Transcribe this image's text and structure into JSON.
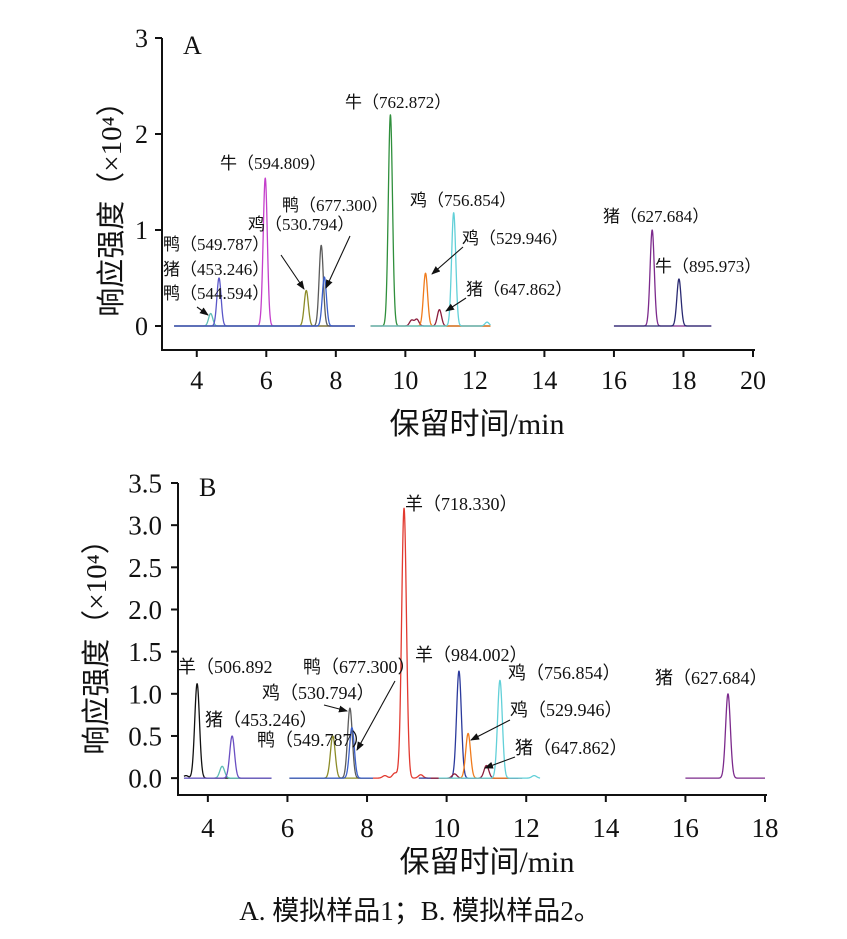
{
  "caption": "A. 模拟样品1；B. 模拟样品2。",
  "chart_data": [
    {
      "type": "line",
      "panel_label": "A",
      "xlabel": "保留时间/min",
      "ylabel": "响应强度（×10⁴）",
      "xlim": [
        3,
        20
      ],
      "ylim": [
        -0.25,
        3
      ],
      "xticks": [
        "4",
        "6",
        "8",
        "10",
        "12",
        "14",
        "16",
        "18",
        "20"
      ],
      "yticks": [
        "0",
        "1",
        "2",
        "3"
      ],
      "grid": false,
      "series": [
        {
          "color": "#5dbdb5",
          "x_range": [
            3.35,
            8.55
          ],
          "peaks": [
            [
              4.4,
              0.13
            ]
          ]
        },
        {
          "color": "#5a57c8",
          "x_range": [
            3.35,
            8.55
          ],
          "peaks": [
            [
              4.64,
              0.5
            ]
          ]
        },
        {
          "color": "#c43fcb",
          "x_range": [
            3.35,
            8.55
          ],
          "peaks": [
            [
              5.97,
              1.54
            ]
          ]
        },
        {
          "color": "#8c8c28",
          "x_range": [
            3.35,
            8.55
          ],
          "peaks": [
            [
              7.15,
              0.37
            ]
          ]
        },
        {
          "color": "#5b5b5b",
          "x_range": [
            3.35,
            8.55
          ],
          "peaks": [
            [
              7.58,
              0.84
            ]
          ]
        },
        {
          "color": "#3b5fc9",
          "x_range": [
            3.35,
            8.55
          ],
          "peaks": [
            [
              7.67,
              0.51
            ]
          ]
        },
        {
          "color": "#2f8f3c",
          "x_range": [
            9.0,
            12.45
          ],
          "peaks": [
            [
              9.57,
              2.2
            ]
          ]
        },
        {
          "color": "#8a1c3c",
          "x_range": [
            9.0,
            12.45
          ],
          "peaks": [
            [
              10.18,
              0.06
            ],
            [
              10.33,
              0.07
            ],
            [
              10.98,
              0.17
            ]
          ]
        },
        {
          "color": "#f07b1c",
          "x_range": [
            9.0,
            12.45
          ],
          "peaks": [
            [
              10.58,
              0.55
            ]
          ]
        },
        {
          "color": "#62d0d8",
          "x_range": [
            9.0,
            12.45
          ],
          "peaks": [
            [
              11.39,
              1.18
            ],
            [
              12.35,
              0.04
            ]
          ]
        },
        {
          "color": "#7c2a8c",
          "x_range": [
            16.0,
            18.8
          ],
          "peaks": [
            [
              17.1,
              1.0
            ]
          ]
        },
        {
          "color": "#2a2a72",
          "x_range": [
            16.0,
            18.8
          ],
          "peaks": [
            [
              17.87,
              0.49
            ]
          ]
        }
      ],
      "annotations": [
        "牛（762.872）",
        "牛（594.809）",
        "鸭（677.300）",
        "鸡（530.794）",
        "鸭（549.787）",
        "猪（453.246）",
        "鸭（544.594）",
        "鸡（756.854）",
        "鸡（529.946）",
        "猪（647.862）",
        "猪（627.684）",
        "牛（895.973）"
      ]
    },
    {
      "type": "line",
      "panel_label": "B",
      "xlabel": "保留时间/min",
      "ylabel": "响应强度（×10⁴）",
      "xlim": [
        3.25,
        18
      ],
      "ylim": [
        -0.2,
        3.5
      ],
      "xticks": [
        "4",
        "6",
        "8",
        "10",
        "12",
        "14",
        "16",
        "18"
      ],
      "yticks": [
        "0.0",
        "0.5",
        "1.0",
        "1.5",
        "2.0",
        "2.5",
        "3.0",
        "3.5"
      ],
      "grid": false,
      "series": [
        {
          "color": "#111111",
          "x_range": [
            3.4,
            5.6
          ],
          "peaks": [
            [
              3.45,
              0.03
            ],
            [
              3.73,
              1.12
            ]
          ]
        },
        {
          "color": "#5dbdb5",
          "x_range": [
            3.4,
            5.6
          ],
          "peaks": [
            [
              4.36,
              0.14
            ]
          ]
        },
        {
          "color": "#6a4fc2",
          "x_range": [
            3.4,
            5.6
          ],
          "peaks": [
            [
              4.61,
              0.5
            ]
          ]
        },
        {
          "color": "#8c8c28",
          "x_range": [
            6.05,
            8.15
          ],
          "peaks": [
            [
              7.14,
              0.5
            ]
          ]
        },
        {
          "color": "#5b5b5b",
          "x_range": [
            6.05,
            8.15
          ],
          "peaks": [
            [
              7.57,
              0.83
            ]
          ]
        },
        {
          "color": "#3b5fc9",
          "x_range": [
            6.05,
            8.15
          ],
          "peaks": [
            [
              7.62,
              0.6
            ]
          ]
        },
        {
          "color": "#e23a30",
          "x_range": [
            8.15,
            9.95
          ],
          "peaks": [
            [
              8.45,
              0.03
            ],
            [
              8.7,
              0.06
            ],
            [
              8.93,
              3.2
            ],
            [
              9.35,
              0.04
            ]
          ]
        },
        {
          "color": "#2b3a9c",
          "x_range": [
            9.3,
            11.8
          ],
          "peaks": [
            [
              10.31,
              1.27
            ]
          ]
        },
        {
          "color": "#8a1c3c",
          "x_range": [
            9.6,
            11.9
          ],
          "peaks": [
            [
              10.2,
              0.05
            ],
            [
              11.0,
              0.15
            ]
          ]
        },
        {
          "color": "#f07b1c",
          "x_range": [
            9.8,
            11.6
          ],
          "peaks": [
            [
              10.54,
              0.53
            ]
          ]
        },
        {
          "color": "#62d0d8",
          "x_range": [
            9.8,
            12.35
          ],
          "peaks": [
            [
              11.34,
              1.16
            ],
            [
              12.2,
              0.03
            ]
          ]
        },
        {
          "color": "#7c2a8c",
          "x_range": [
            16.0,
            18.0
          ],
          "peaks": [
            [
              17.07,
              1.0
            ]
          ]
        }
      ],
      "annotations": [
        "羊（718.330）",
        "羊（506.892",
        "猪（453.246）",
        "鸭（677.300）",
        "鸡（530.794）",
        "鸭（549.787）",
        "羊（984.002）",
        "鸡（756.854）",
        "鸡（529.946）",
        "猪（647.862）",
        "猪（627.684）"
      ]
    }
  ]
}
